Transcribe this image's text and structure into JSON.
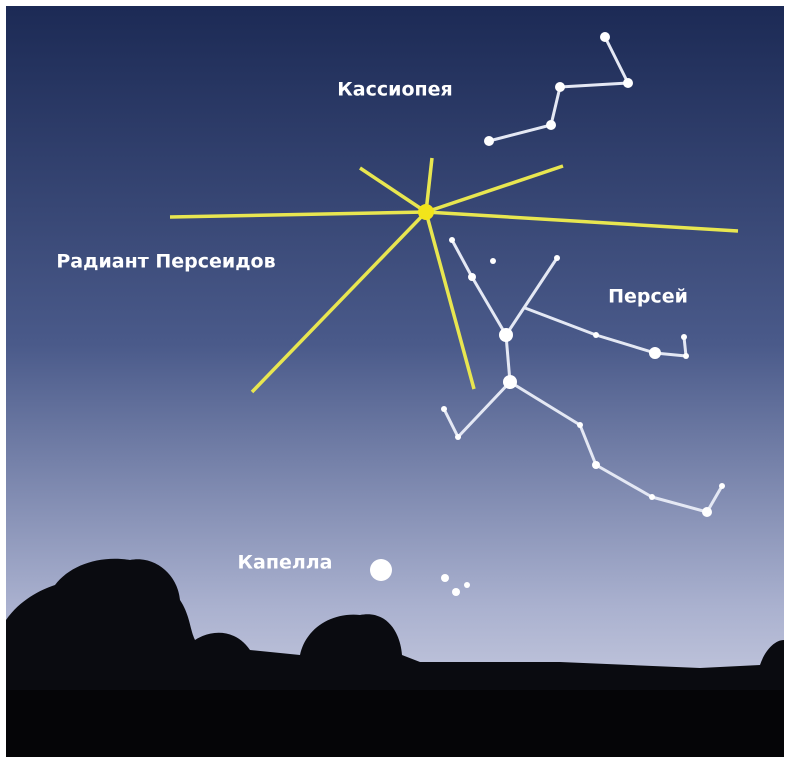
{
  "labels": [
    "Кассиопея",
    "Радиант Персеидов",
    "Персей",
    "Капелла"
  ]
}
